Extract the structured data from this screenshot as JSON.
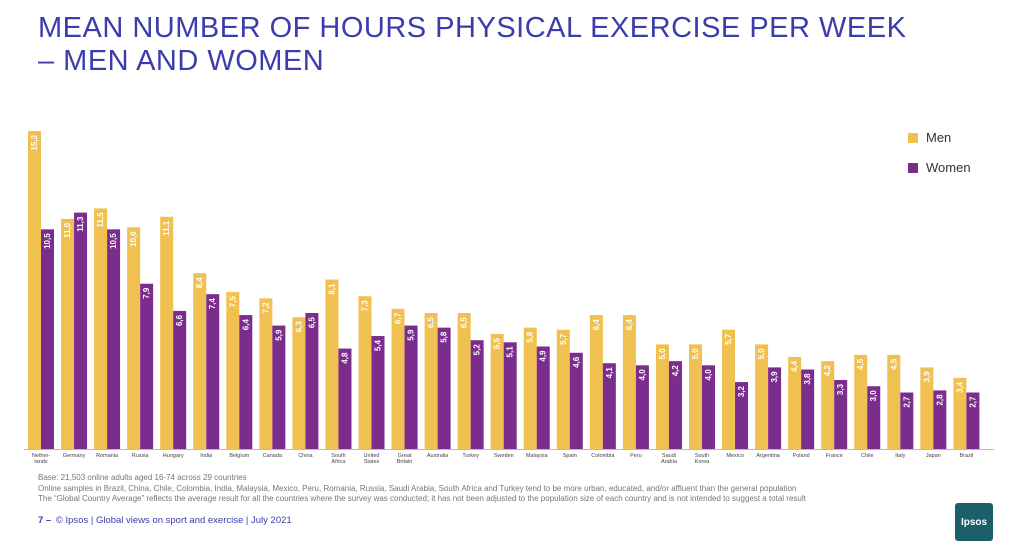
{
  "title": {
    "line1": "MEAN NUMBER OF HOURS PHYSICAL EXERCISE PER WEEK",
    "line2": "– MEN AND WOMEN"
  },
  "colors": {
    "men": "#f0c050",
    "women": "#7b2d8e",
    "title": "#3a3dab",
    "logo": "#1b5f6b"
  },
  "chart_data": {
    "type": "bar",
    "categories": [
      [
        "Nether-",
        "lands"
      ],
      [
        "Germany"
      ],
      [
        "Romania"
      ],
      [
        "Russia"
      ],
      [
        "Hungary"
      ],
      [
        "India"
      ],
      [
        "Belgium"
      ],
      [
        "Canada"
      ],
      [
        "China"
      ],
      [
        "South",
        "Africa"
      ],
      [
        "United",
        "States"
      ],
      [
        "Great",
        "Britain"
      ],
      [
        "Australia"
      ],
      [
        "Turkey"
      ],
      [
        "Sweden"
      ],
      [
        "Malaysia"
      ],
      [
        "Spain"
      ],
      [
        "Colombia"
      ],
      [
        "Peru"
      ],
      [
        "Saudi",
        "Arabia"
      ],
      [
        "South",
        "Korea"
      ],
      [
        "Mexico"
      ],
      [
        "Argentina"
      ],
      [
        "Poland"
      ],
      [
        "France"
      ],
      [
        "Chile"
      ],
      [
        "Italy"
      ],
      [
        "Japan"
      ],
      [
        "Brazil"
      ]
    ],
    "series": [
      {
        "name": "Men",
        "values": [
          15.2,
          11.0,
          11.5,
          10.6,
          11.1,
          8.4,
          7.5,
          7.2,
          6.3,
          8.1,
          7.3,
          6.7,
          6.5,
          6.5,
          5.5,
          5.8,
          5.7,
          6.4,
          6.4,
          5.0,
          5.0,
          5.7,
          5.0,
          4.4,
          4.2,
          4.5,
          4.5,
          3.9,
          3.4
        ],
        "labels": [
          "15,2",
          "11,0",
          "11,5",
          "10,6",
          "11,1",
          "8,4",
          "7,5",
          "7,2",
          "6,3",
          "8,1",
          "7,3",
          "6,7",
          "6,5",
          "6,5",
          "5,5",
          "5,8",
          "5,7",
          "6,4",
          "6,4",
          "5,0",
          "5,0",
          "5,7",
          "5,0",
          "4,4",
          "4,2",
          "4,5",
          "4,5",
          "3,9",
          "3,4"
        ]
      },
      {
        "name": "Women",
        "values": [
          10.5,
          11.3,
          10.5,
          7.9,
          6.6,
          7.4,
          6.4,
          5.9,
          6.5,
          4.8,
          5.4,
          5.9,
          5.8,
          5.2,
          5.1,
          4.9,
          4.6,
          4.1,
          4.0,
          4.2,
          4.0,
          3.2,
          3.9,
          3.8,
          3.3,
          3.0,
          2.7,
          2.8,
          2.7
        ],
        "labels": [
          "10,5",
          "11,3",
          "10,5",
          "7,9",
          "6,6",
          "7,4",
          "6,4",
          "5,9",
          "6,5",
          "4,8",
          "5,4",
          "5,9",
          "5,8",
          "5,2",
          "5,1",
          "4,9",
          "4,6",
          "4,1",
          "4,0",
          "4,2",
          "4,0",
          "3,2",
          "3,9",
          "3,8",
          "3,3",
          "3,0",
          "2,7",
          "2,8",
          "2,7"
        ]
      }
    ],
    "ylim": [
      0,
      15.2
    ],
    "legend_position": "top-right",
    "grid": false
  },
  "notes": {
    "line1": "Base: 21,503 online adults aged 16-74 across 29 countries",
    "line2": "Online samples in Brazil, China, Chile, Colombia, India, Malaysia, Mexico, Peru, Romania, Russia, Saudi Arabia, South Africa and Turkey tend to be more urban, educated, and/or affluent than the general population",
    "line3": "The “Global Country Average” reflects the average result for all the countries where the survey was conducted; it has not been adjusted to the population size of each country and is not intended to suggest a total result"
  },
  "footer": {
    "page": "7 –",
    "text": "© Ipsos | Global views on sport and exercise | July 2021"
  },
  "logo_text": "Ipsos"
}
